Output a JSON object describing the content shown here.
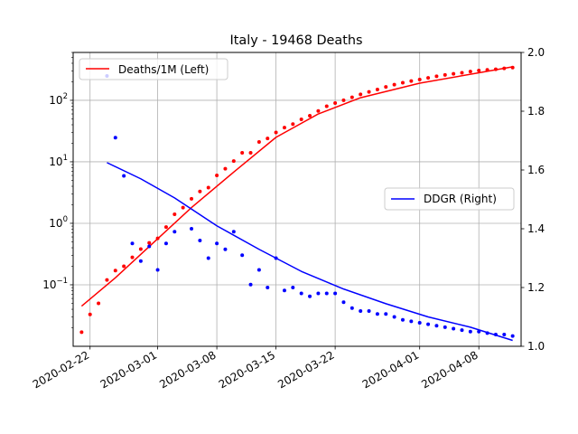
{
  "chart_data": {
    "type": "line",
    "title": "Italy - 19468 Deaths",
    "x_axis": {
      "type": "date",
      "range": [
        "2020-02-20",
        "2020-04-13"
      ],
      "ticks": [
        "2020-02-22",
        "2020-03-01",
        "2020-03-08",
        "2020-03-15",
        "2020-03-22",
        "2020-04-01",
        "2020-04-08"
      ]
    },
    "y_left": {
      "scale": "log",
      "range": [
        0.01,
        600
      ],
      "ticks": [
        {
          "value": 0.1,
          "base": "10",
          "exp": "−1"
        },
        {
          "value": 1,
          "base": "10",
          "exp": "0"
        },
        {
          "value": 10,
          "base": "10",
          "exp": "1"
        },
        {
          "value": 100,
          "base": "10",
          "exp": "2"
        }
      ]
    },
    "y_right": {
      "scale": "linear",
      "range": [
        1.0,
        2.0
      ],
      "ticks": [
        "1.0",
        "1.2",
        "1.4",
        "1.6",
        "1.8",
        "2.0"
      ]
    },
    "grid": true,
    "series": [
      {
        "name": "Deaths/1M (Left)",
        "color": "#ff0000",
        "axis": "left",
        "dates": [
          "2020-02-21",
          "2020-02-22",
          "2020-02-23",
          "2020-02-24",
          "2020-02-25",
          "2020-02-26",
          "2020-02-27",
          "2020-02-28",
          "2020-02-29",
          "2020-03-01",
          "2020-03-02",
          "2020-03-03",
          "2020-03-04",
          "2020-03-05",
          "2020-03-06",
          "2020-03-07",
          "2020-03-08",
          "2020-03-09",
          "2020-03-10",
          "2020-03-11",
          "2020-03-12",
          "2020-03-13",
          "2020-03-14",
          "2020-03-15",
          "2020-03-16",
          "2020-03-17",
          "2020-03-18",
          "2020-03-19",
          "2020-03-20",
          "2020-03-21",
          "2020-03-22",
          "2020-03-23",
          "2020-03-24",
          "2020-03-25",
          "2020-03-26",
          "2020-03-27",
          "2020-03-28",
          "2020-03-29",
          "2020-03-30",
          "2020-03-31",
          "2020-04-01",
          "2020-04-02",
          "2020-04-03",
          "2020-04-04",
          "2020-04-05",
          "2020-04-06",
          "2020-04-07",
          "2020-04-08",
          "2020-04-09",
          "2020-04-10",
          "2020-04-11",
          "2020-04-12"
        ],
        "points": [
          0.017,
          0.033,
          0.05,
          0.12,
          0.17,
          0.2,
          0.28,
          0.38,
          0.48,
          0.57,
          0.87,
          1.4,
          1.8,
          2.5,
          3.3,
          3.8,
          6.0,
          7.7,
          10.3,
          14.0,
          14.0,
          21.0,
          24.0,
          30.0,
          36.0,
          41.0,
          49.0,
          56.0,
          67.0,
          80.0,
          90.0,
          100.0,
          112.0,
          125.0,
          137.0,
          150.0,
          165.0,
          180.0,
          193.0,
          206.0,
          217.0,
          232.0,
          246.0,
          258.0,
          270.0,
          280.0,
          293.0,
          305.0,
          313.0,
          320.0,
          330.0,
          340.0
        ],
        "fit_dates": [
          "2020-02-21",
          "2020-02-25",
          "2020-03-01",
          "2020-03-05",
          "2020-03-10",
          "2020-03-15",
          "2020-03-20",
          "2020-03-25",
          "2020-04-01",
          "2020-04-08",
          "2020-04-12"
        ],
        "fit": [
          0.045,
          0.13,
          0.56,
          1.8,
          6.8,
          25.0,
          60.0,
          110.0,
          190.0,
          280.0,
          350.0
        ]
      },
      {
        "name": "DDGR (Right)",
        "color": "#0000ff",
        "axis": "right",
        "dates": [
          "2020-02-24",
          "2020-02-25",
          "2020-02-26",
          "2020-02-27",
          "2020-02-28",
          "2020-02-29",
          "2020-03-01",
          "2020-03-02",
          "2020-03-03",
          "2020-03-05",
          "2020-03-06",
          "2020-03-07",
          "2020-03-08",
          "2020-03-09",
          "2020-03-10",
          "2020-03-11",
          "2020-03-12",
          "2020-03-13",
          "2020-03-14",
          "2020-03-15",
          "2020-03-16",
          "2020-03-17",
          "2020-03-18",
          "2020-03-19",
          "2020-03-20",
          "2020-03-21",
          "2020-03-22",
          "2020-03-23",
          "2020-03-24",
          "2020-03-25",
          "2020-03-26",
          "2020-03-27",
          "2020-03-28",
          "2020-03-29",
          "2020-03-30",
          "2020-03-31",
          "2020-04-01",
          "2020-04-02",
          "2020-04-03",
          "2020-04-04",
          "2020-04-05",
          "2020-04-06",
          "2020-04-07",
          "2020-04-08",
          "2020-04-09",
          "2020-04-10",
          "2020-04-11",
          "2020-04-12"
        ],
        "points": [
          1.92,
          1.71,
          1.58,
          1.35,
          1.29,
          1.34,
          1.26,
          1.35,
          1.39,
          1.4,
          1.36,
          1.3,
          1.35,
          1.33,
          1.39,
          1.31,
          1.21,
          1.26,
          1.2,
          1.3,
          1.19,
          1.2,
          1.18,
          1.17,
          1.18,
          1.18,
          1.18,
          1.15,
          1.13,
          1.12,
          1.12,
          1.11,
          1.11,
          1.1,
          1.09,
          1.085,
          1.08,
          1.075,
          1.07,
          1.065,
          1.06,
          1.055,
          1.05,
          1.05,
          1.045,
          1.04,
          1.04,
          1.035
        ],
        "fit_dates": [
          "2020-02-24",
          "2020-02-28",
          "2020-03-03",
          "2020-03-08",
          "2020-03-13",
          "2020-03-18",
          "2020-03-23",
          "2020-03-28",
          "2020-04-02",
          "2020-04-07",
          "2020-04-12"
        ],
        "fit": [
          1.625,
          1.57,
          1.505,
          1.41,
          1.33,
          1.255,
          1.195,
          1.145,
          1.1,
          1.065,
          1.02
        ]
      }
    ],
    "legends": [
      {
        "series": 0,
        "placement": "upper-left"
      },
      {
        "series": 1,
        "placement": "center-right"
      }
    ]
  }
}
